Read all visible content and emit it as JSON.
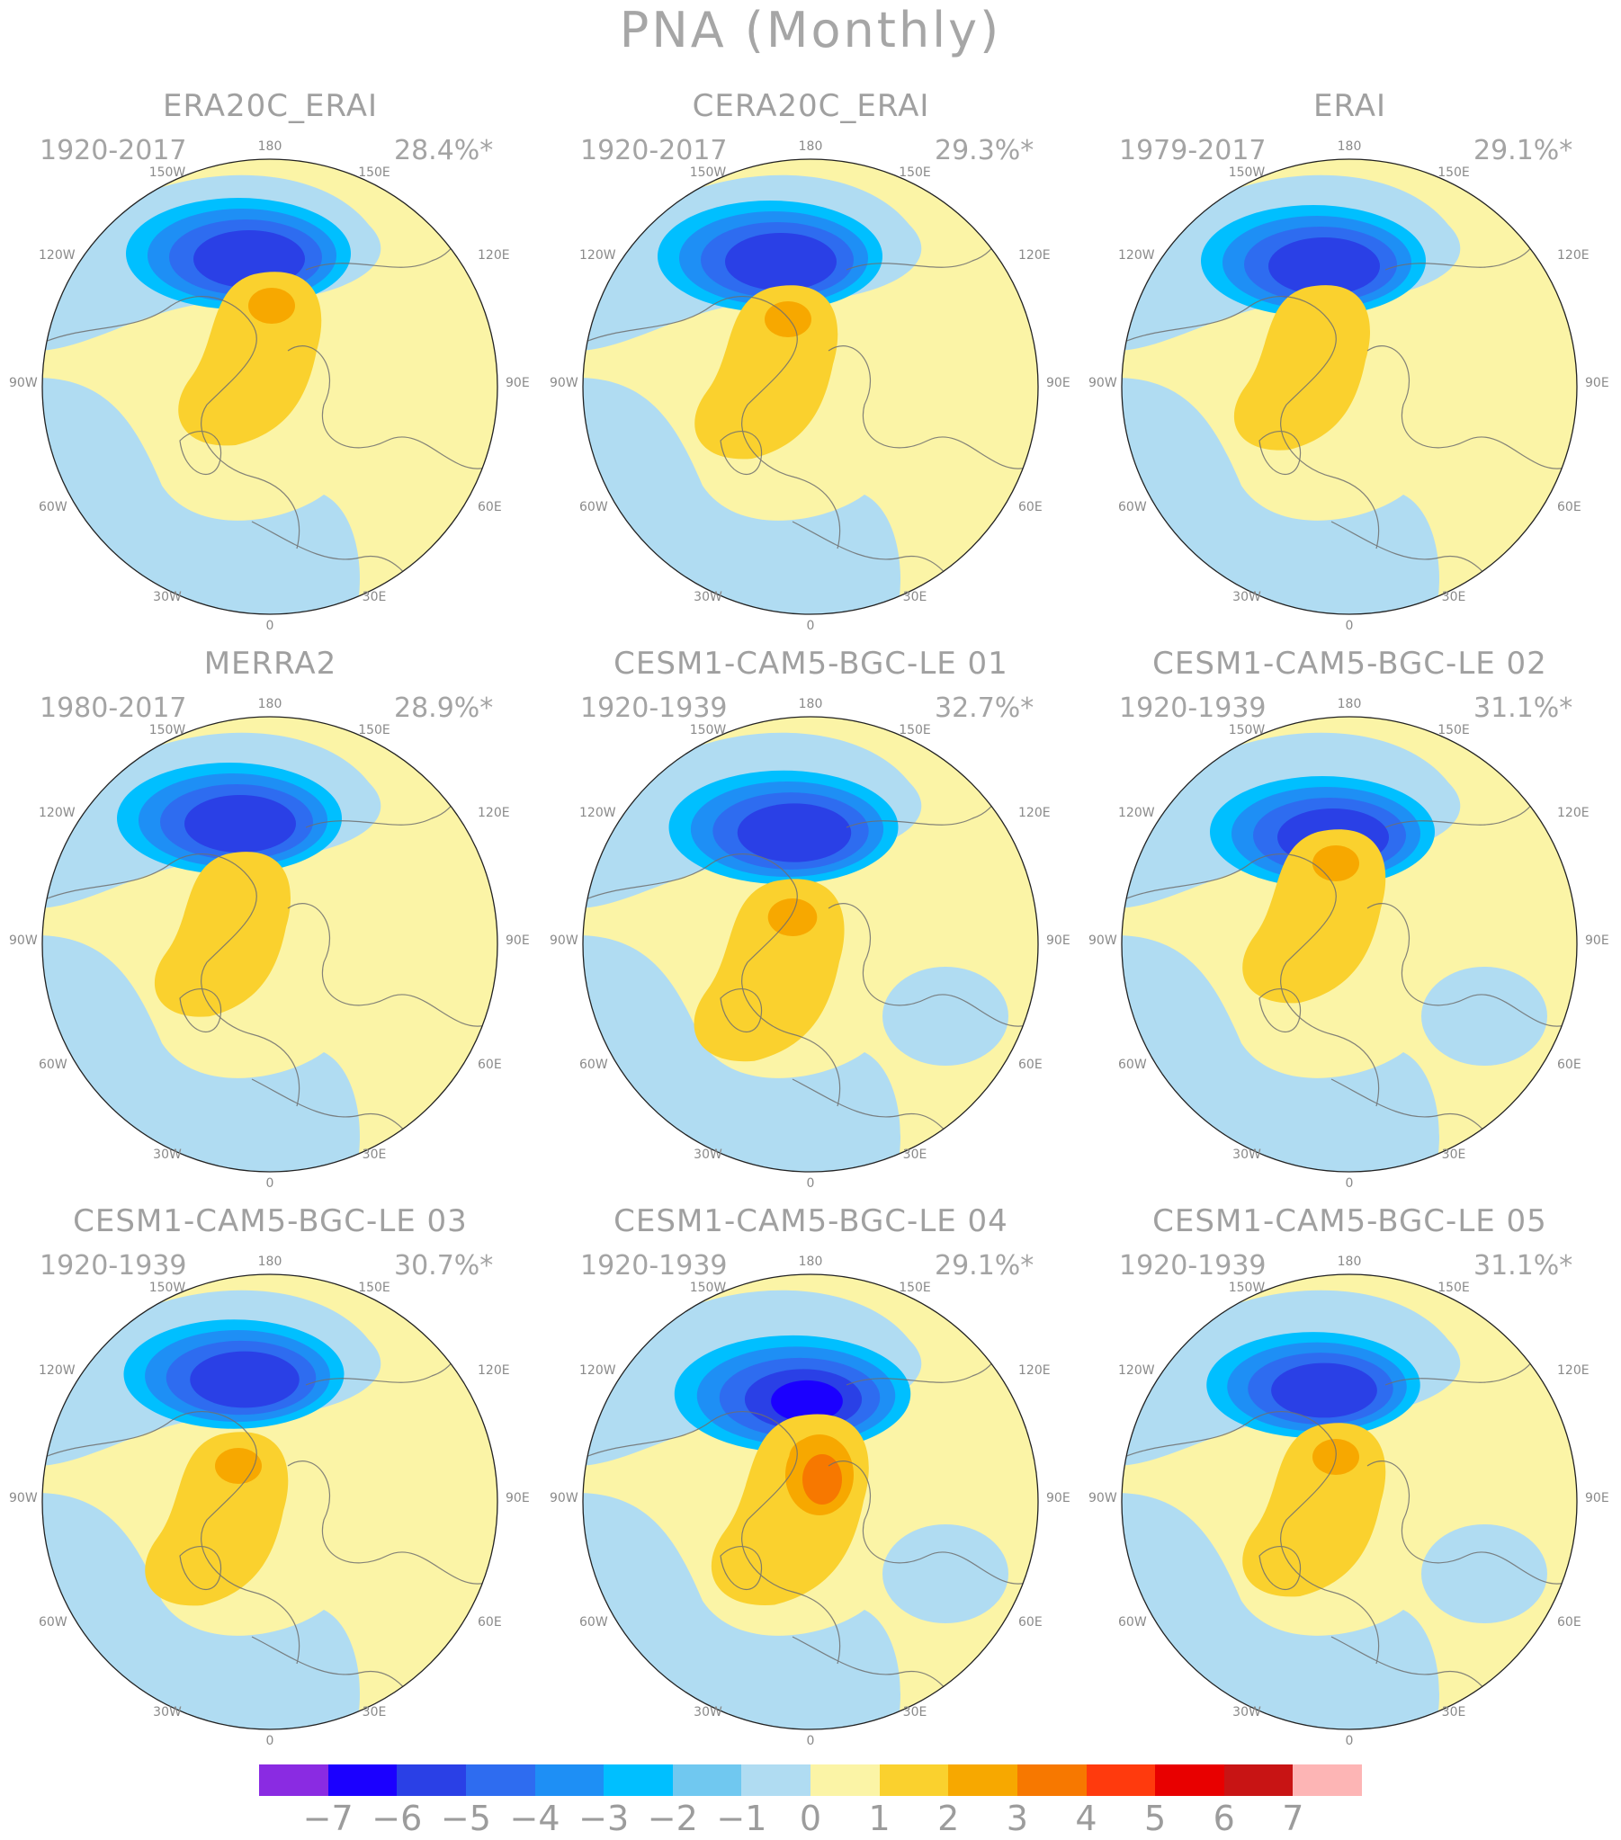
{
  "title": "PNA (Monthly)",
  "panels": [
    {
      "name": "ERA20C_ERAI",
      "period": "1920-2017",
      "variance": "28.4%*"
    },
    {
      "name": "CERA20C_ERAI",
      "period": "1920-2017",
      "variance": "29.3%*"
    },
    {
      "name": "ERAI",
      "period": "1979-2017",
      "variance": "29.1%*"
    },
    {
      "name": "MERRA2",
      "period": "1980-2017",
      "variance": "28.9%*"
    },
    {
      "name": "CESM1-CAM5-BGC-LE 01",
      "period": "1920-1939",
      "variance": "32.7%*"
    },
    {
      "name": "CESM1-CAM5-BGC-LE 02",
      "period": "1920-1939",
      "variance": "31.1%*"
    },
    {
      "name": "CESM1-CAM5-BGC-LE 03",
      "period": "1920-1939",
      "variance": "30.7%*"
    },
    {
      "name": "CESM1-CAM5-BGC-LE 04",
      "period": "1920-1939",
      "variance": "29.1%*"
    },
    {
      "name": "CESM1-CAM5-BGC-LE 05",
      "period": "1920-1939",
      "variance": "31.1%*"
    }
  ],
  "longitude_labels": [
    "180",
    "150W",
    "150E",
    "120W",
    "120E",
    "90W",
    "90E",
    "60W",
    "60E",
    "30W",
    "30E",
    "0"
  ],
  "colorbar": {
    "labels": [
      "−7",
      "−6",
      "−5",
      "−4",
      "−3",
      "−2",
      "−1",
      "0",
      "1",
      "2",
      "3",
      "4",
      "5",
      "6",
      "7"
    ],
    "colors": [
      "#8a2be2",
      "#1b00ff",
      "#2a40e6",
      "#2e6cf0",
      "#1e8ff5",
      "#00bfff",
      "#70c8f0",
      "#b0dcf2",
      "#fbf4a6",
      "#fad12e",
      "#f7a800",
      "#f77800",
      "#ff3a0d",
      "#e80000",
      "#c81414",
      "#fdb5b5"
    ]
  }
}
